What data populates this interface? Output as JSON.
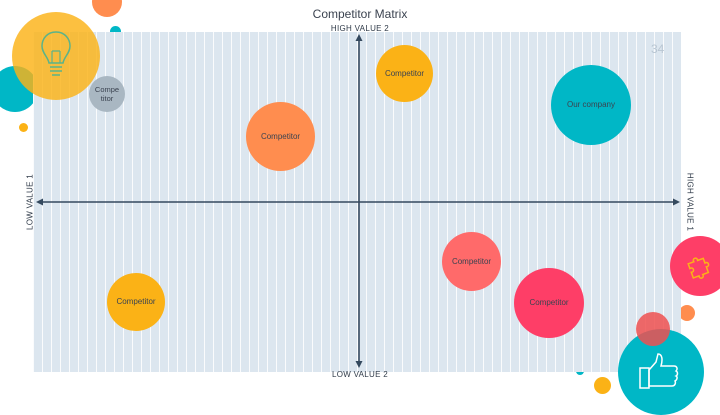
{
  "title": "Competitor Matrix",
  "slide_number": "34",
  "axis_labels": {
    "high_value_2": "HIGH VALUE 2",
    "low_value_2": "LOW VALUE 2",
    "low_value_1": "LOW VALUE 1",
    "high_value_1": "HIGH VALUE 1"
  },
  "bubbles": {
    "competitor_small_gray": "Compe\ntitor",
    "competitor_top_yellow": "Competitor",
    "competitor_orange": "Competitor",
    "our_company": "Our company",
    "competitor_salmon": "Competitor",
    "competitor_pink": "Competitor",
    "competitor_bottom_yellow": "Competitor"
  },
  "colors": {
    "panel": "#dce6ef",
    "axis": "#34495e",
    "yellow": "#fbb216",
    "orange": "#ff8d4f",
    "teal": "#00b7c6",
    "salmon": "#ff6a6a",
    "pink": "#fe3e67",
    "gray": "#a9b7c2"
  },
  "icons": [
    "lightbulb-icon",
    "puzzle-piece-icon",
    "thumbs-up-icon"
  ]
}
